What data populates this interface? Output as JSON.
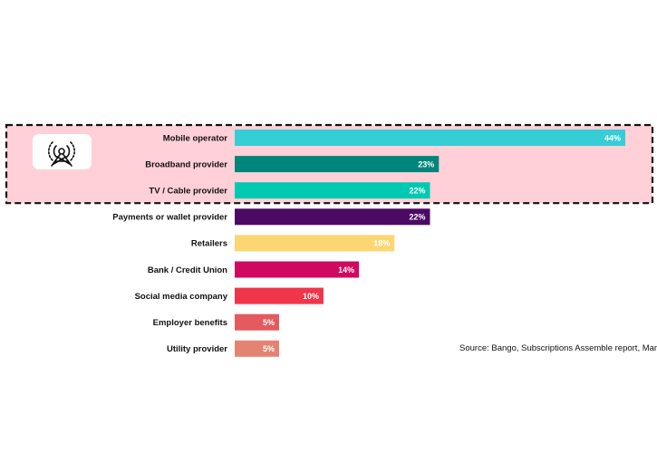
{
  "chart_data": {
    "type": "bar",
    "orientation": "horizontal",
    "categories": [
      "Mobile operator",
      "Broadband provider",
      "TV / Cable provider",
      "Payments or wallet provider",
      "Retailers",
      "Bank / Credit Union",
      "Social media company",
      "Employer benefits",
      "Utility provider"
    ],
    "values": [
      44,
      23,
      22,
      22,
      18,
      14,
      10,
      5,
      5
    ],
    "value_labels": [
      "44%",
      "23%",
      "22%",
      "22%",
      "18%",
      "14%",
      "10%",
      "5%",
      "5%"
    ],
    "colors": [
      "#35cdd6",
      "#00857a",
      "#00c9b1",
      "#4d0a64",
      "#fcd672",
      "#d1085f",
      "#f0354a",
      "#e35a5f",
      "#e48372"
    ],
    "xlim": [
      0,
      44
    ],
    "grid": false,
    "highlight": {
      "categories": [
        "Mobile operator",
        "Broadband provider",
        "TV / Cable provider"
      ],
      "fill": "#ffd0d8",
      "border": "dashed",
      "border_color": "#111111",
      "icon": "cell-tower-icon"
    },
    "source": "Source: Bango, Subscriptions Assemble report, March"
  }
}
